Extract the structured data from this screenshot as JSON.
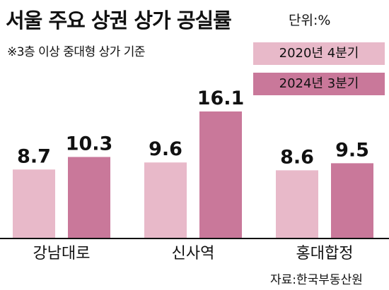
{
  "title": "서울 주요 상권 상가 공실률",
  "unit": "단위:%",
  "subtitle": "※3층 이상 중대형 상가 기준",
  "source": "자료:한국부동산원",
  "colors": {
    "series_2020": "#e8b9c9",
    "series_2024": "#c9789a",
    "axis": "#111111"
  },
  "chart_data": {
    "type": "bar",
    "title": "서울 주요 상권 상가 공실률",
    "ylabel": "",
    "xlabel": "",
    "categories": [
      "강남대로",
      "신사역",
      "홍대합정"
    ],
    "series": [
      {
        "name": "2020년 4분기",
        "values": [
          8.7,
          9.6,
          8.6
        ]
      },
      {
        "name": "2024년 3분기",
        "values": [
          10.3,
          16.1,
          9.5
        ]
      }
    ],
    "ylim": [
      0,
      18
    ],
    "legend": "top-right",
    "grid": false
  }
}
